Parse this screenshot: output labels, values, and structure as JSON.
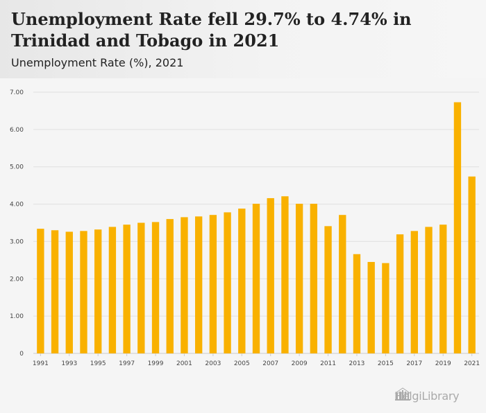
{
  "header": {
    "title": "Unemployment Rate fell 29.7% to 4.74% in Trinidad and Tobago in 2021",
    "subtitle": "Unemployment Rate (%), 2021"
  },
  "logo": {
    "text": "HelgiLibrary",
    "icon": "library-building-icon"
  },
  "colors": {
    "bar": "#f9b100",
    "grid": "#e0e0e0",
    "axis": "#cccccc"
  },
  "chart_data": {
    "type": "bar",
    "title": "Unemployment Rate (%), 2021",
    "xlabel": "",
    "ylabel": "",
    "ylim": [
      0,
      7
    ],
    "yticks": [
      "0",
      "1.00",
      "2.00",
      "3.00",
      "4.00",
      "5.00",
      "6.00",
      "7.00"
    ],
    "grid": true,
    "categories": [
      "1991",
      "1992",
      "1993",
      "1994",
      "1995",
      "1996",
      "1997",
      "1998",
      "1999",
      "2000",
      "2001",
      "2002",
      "2003",
      "2004",
      "2005",
      "2006",
      "2007",
      "2008",
      "2009",
      "2010",
      "2011",
      "2012",
      "2013",
      "2014",
      "2015",
      "2016",
      "2017",
      "2018",
      "2019",
      "2020",
      "2021"
    ],
    "xtick_labels": [
      "1991",
      "1993",
      "1995",
      "1997",
      "1999",
      "2001",
      "2003",
      "2005",
      "2007",
      "2009",
      "2011",
      "2013",
      "2015",
      "2017",
      "2019",
      "2021"
    ],
    "values": [
      3.34,
      3.3,
      3.26,
      3.28,
      3.32,
      3.39,
      3.45,
      3.5,
      3.52,
      3.6,
      3.65,
      3.67,
      3.71,
      3.78,
      3.88,
      4.01,
      4.16,
      4.21,
      4.01,
      4.01,
      3.41,
      3.71,
      2.66,
      2.45,
      2.42,
      3.19,
      3.28,
      3.39,
      3.45,
      6.73,
      4.74
    ]
  }
}
